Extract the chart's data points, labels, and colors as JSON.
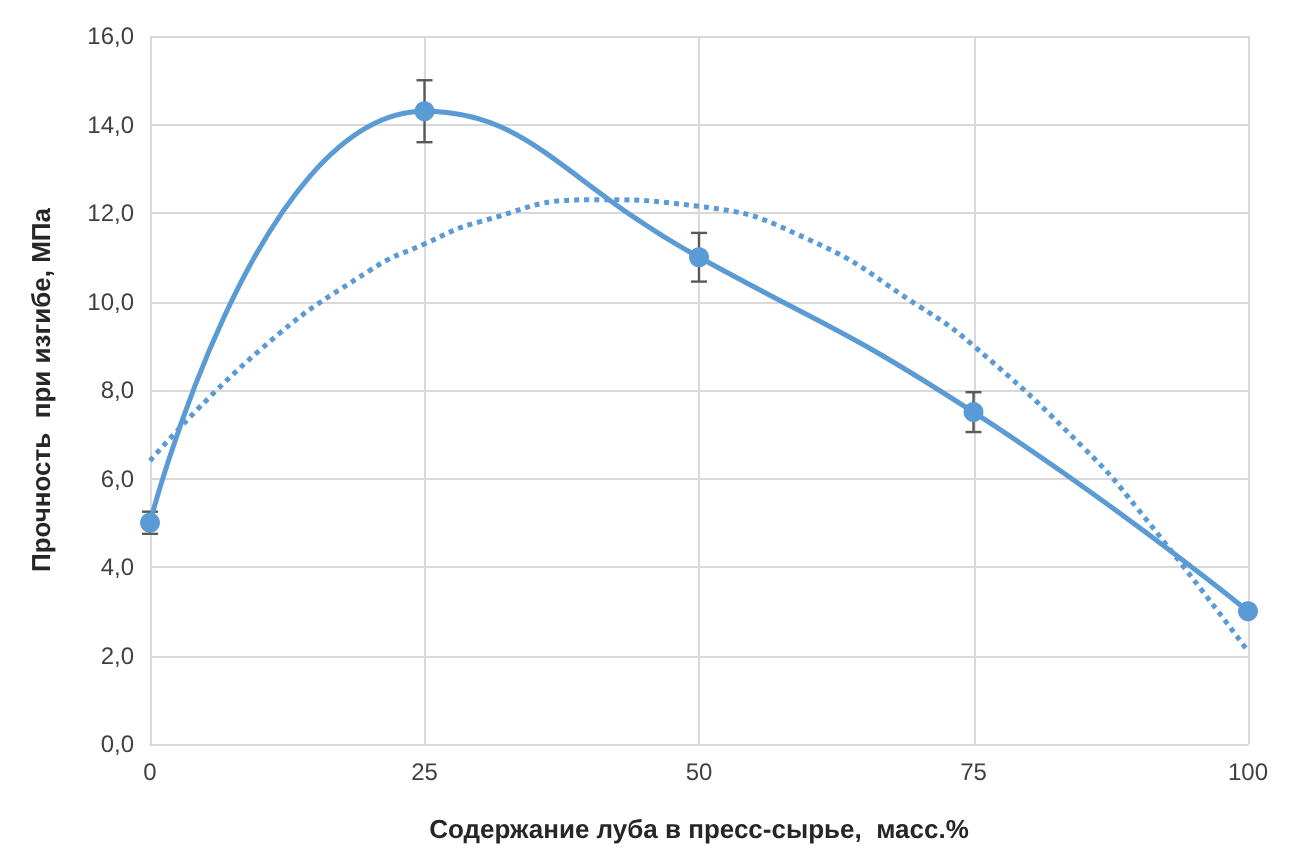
{
  "chart_data": {
    "type": "line",
    "xlabel": "Содержание луба в пресс-сырье,  масс.%",
    "ylabel": "Прочность  при изгибе, МПа",
    "x": [
      0,
      25,
      50,
      75,
      100
    ],
    "series": [
      {
        "color": "#5b9bd5",
        "marker": "circle",
        "line_style": "solid",
        "values": [
          5.0,
          14.3,
          11.0,
          7.5,
          3.0
        ],
        "errors": [
          0.25,
          0.7,
          0.55,
          0.45,
          null
        ]
      },
      {
        "color": "#5b9bd5",
        "marker": "none",
        "line_style": "dotted",
        "x": [
          0,
          10,
          20,
          25,
          30,
          40,
          50,
          60,
          70,
          75,
          85,
          90,
          100
        ],
        "values": [
          6.4,
          8.9,
          10.7,
          11.3,
          11.8,
          12.3,
          12.15,
          11.4,
          9.9,
          9.0,
          6.7,
          5.3,
          2.1
        ]
      }
    ],
    "xlim": [
      0,
      100
    ],
    "xticks": [
      0,
      25,
      50,
      75,
      100
    ],
    "ylim": [
      0,
      16
    ],
    "yticks": [
      {
        "value": 0,
        "label": "0,0"
      },
      {
        "value": 2,
        "label": "2,0"
      },
      {
        "value": 4,
        "label": "4,0"
      },
      {
        "value": 6,
        "label": "6,0"
      },
      {
        "value": 8,
        "label": "8,0"
      },
      {
        "value": 10,
        "label": "10,0"
      },
      {
        "value": 12,
        "label": "12,0"
      },
      {
        "value": 14,
        "label": "14,0"
      },
      {
        "value": 16,
        "label": "16,0"
      }
    ],
    "grid": true
  }
}
